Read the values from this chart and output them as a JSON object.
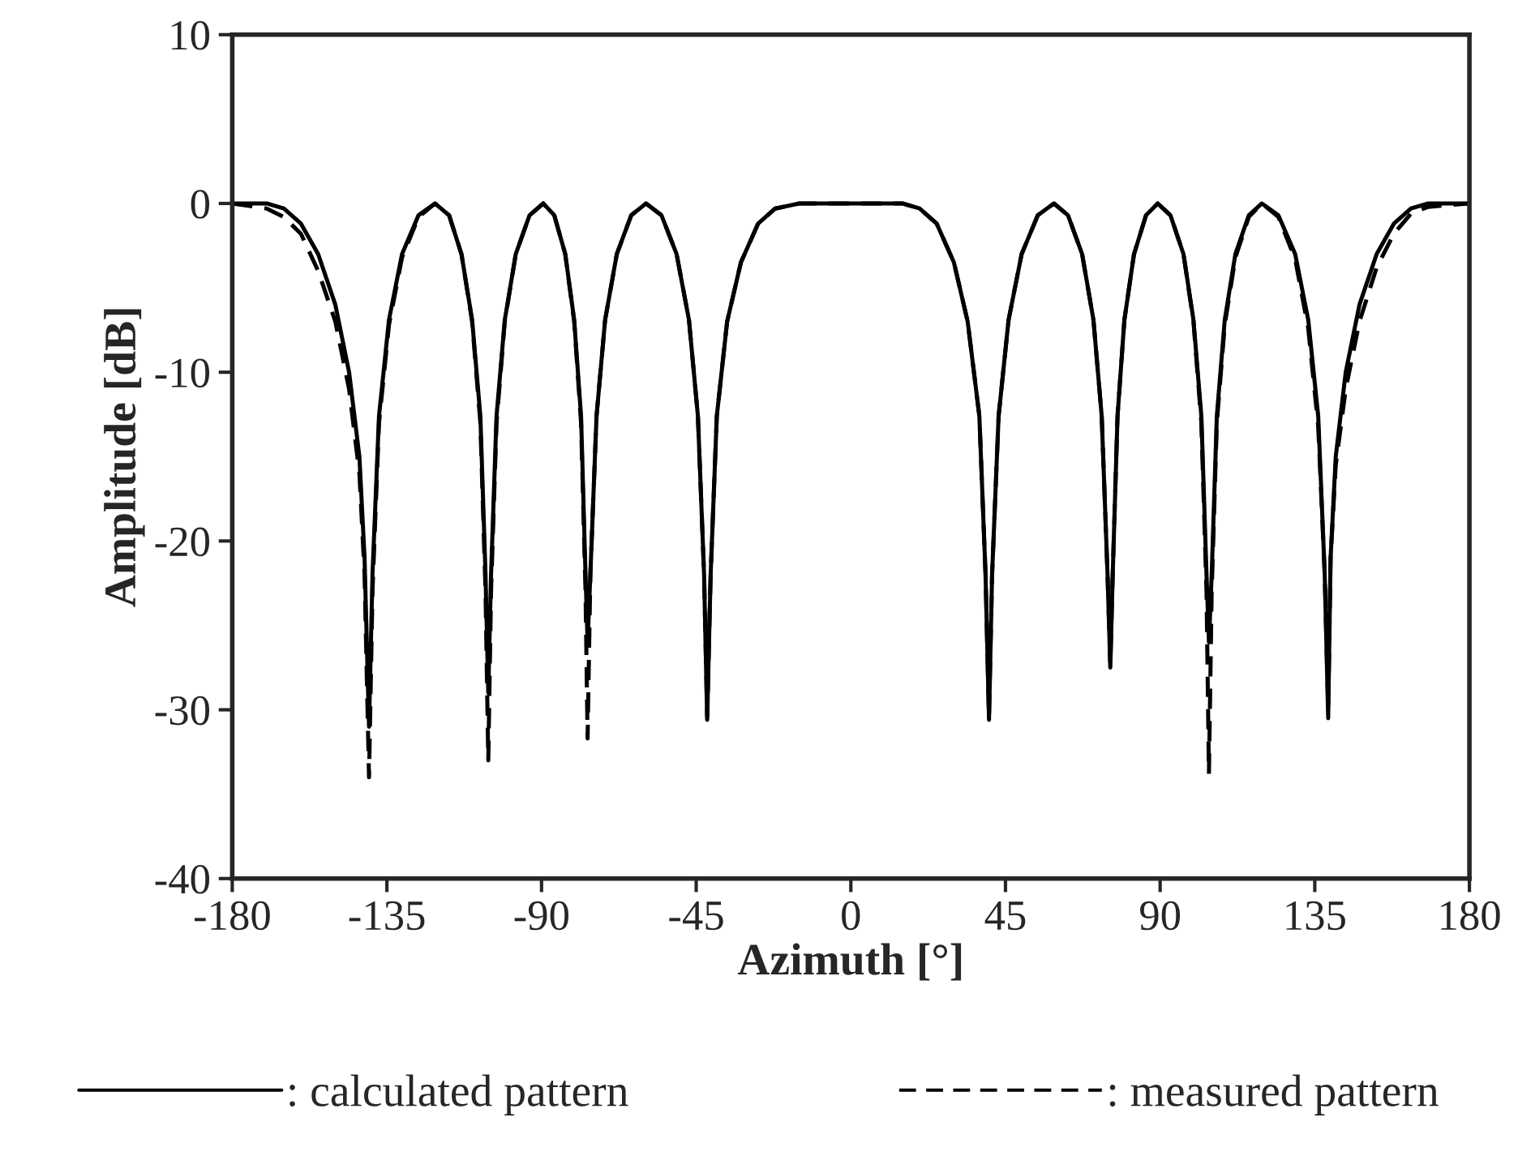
{
  "chart_data": {
    "type": "line",
    "xlabel": "Azimuth [°]",
    "ylabel": "Amplitude [dB]",
    "x": [
      -180,
      -170,
      -165,
      -160,
      -155,
      -150,
      -146,
      -143,
      -141.5,
      -140.2,
      -139.2,
      -137.3,
      -134.4,
      -130.6,
      -125.8,
      -121,
      -116.9,
      -113.3,
      -110.2,
      -107.8,
      -106.3,
      -105.5,
      -104.7,
      -103.1,
      -100.7,
      -97.5,
      -93.5,
      -89.5,
      -86.3,
      -83.1,
      -80.5,
      -78.5,
      -77.2,
      -76.6,
      -75.8,
      -74,
      -71.5,
      -68.1,
      -63.9,
      -59.6,
      -55.1,
      -50.7,
      -47.1,
      -44.5,
      -42.7,
      -41.8,
      -40.8,
      -39,
      -36,
      -32,
      -27,
      -22,
      -15,
      0,
      15,
      20,
      25,
      30,
      34,
      37.4,
      39.2,
      40.2,
      41.1,
      43,
      45.9,
      49.7,
      54.4,
      59.1,
      63.2,
      67.3,
      70.6,
      73,
      74.7,
      75.5,
      76.2,
      77.6,
      79.6,
      82.4,
      85.9,
      89.3,
      93,
      96.8,
      99.7,
      102,
      103.5,
      104.2,
      105,
      106.5,
      108.8,
      111.9,
      115.8,
      119.6,
      124.4,
      129.3,
      133.1,
      136,
      137.9,
      138.9,
      139.6,
      141.1,
      144,
      148,
      153,
      158,
      163,
      168,
      180
    ],
    "series": [
      {
        "name": ": calculated pattern",
        "color": "#000000",
        "line_style": "solid",
        "values": [
          0,
          0,
          -0.3,
          -1.2,
          -3,
          -6,
          -10,
          -15,
          -21,
          -31,
          -22,
          -12.6,
          -6.9,
          -3,
          -0.7,
          0,
          -0.7,
          -3,
          -6.9,
          -12.6,
          -22,
          -29,
          -22,
          -12.6,
          -6.9,
          -3,
          -0.7,
          0,
          -0.7,
          -3,
          -6.9,
          -12.6,
          -22,
          -26,
          -22,
          -12.6,
          -6.9,
          -3,
          -0.7,
          0,
          -0.7,
          -3,
          -6.9,
          -12.6,
          -22,
          -30.6,
          -22,
          -12.6,
          -7,
          -3.5,
          -1.2,
          -0.3,
          0,
          0,
          0,
          -0.3,
          -1.2,
          -3.5,
          -7,
          -12.6,
          -22,
          -30.6,
          -22,
          -12.6,
          -6.9,
          -3,
          -0.7,
          0,
          -0.7,
          -3,
          -6.9,
          -12.6,
          -22,
          -27.5,
          -22,
          -12.6,
          -6.9,
          -3,
          -0.7,
          0,
          -0.7,
          -3,
          -6.9,
          -12.6,
          -22,
          -26,
          -22,
          -12.6,
          -6.9,
          -3,
          -0.7,
          0,
          -0.7,
          -3,
          -6.9,
          -12.6,
          -22,
          -30.5,
          -21,
          -15,
          -10,
          -6,
          -3,
          -1.2,
          -0.3,
          0,
          0
        ]
      },
      {
        "name": ": measured pattern",
        "color": "#000000",
        "line_style": "dashed",
        "values": [
          0,
          -0.3,
          -0.8,
          -1.8,
          -4,
          -7,
          -11,
          -16,
          -22,
          -34,
          -23,
          -13,
          -7.2,
          -3.2,
          -0.8,
          0,
          -0.7,
          -3,
          -7,
          -13,
          -23,
          -33,
          -23,
          -13,
          -7,
          -3,
          -0.7,
          0,
          -0.7,
          -3,
          -7,
          -13,
          -23,
          -31.7,
          -22,
          -12.6,
          -6.9,
          -3,
          -0.7,
          0,
          -0.7,
          -3,
          -6.9,
          -12.6,
          -22,
          -30.4,
          -22,
          -12.6,
          -7,
          -3.5,
          -1.2,
          -0.3,
          0,
          0,
          0,
          -0.3,
          -1.2,
          -3.5,
          -7,
          -12.6,
          -22,
          -30.4,
          -22,
          -12.6,
          -6.9,
          -3,
          -0.7,
          0,
          -0.7,
          -3,
          -6.9,
          -12.6,
          -22,
          -27.3,
          -22,
          -12.6,
          -6.9,
          -3,
          -0.7,
          0,
          -0.7,
          -3,
          -7,
          -13,
          -23,
          -33.8,
          -23,
          -13,
          -7.2,
          -3.2,
          -0.8,
          0,
          -0.8,
          -3.3,
          -7.4,
          -13.2,
          -22,
          -30,
          -21,
          -15.5,
          -11,
          -7,
          -3.8,
          -1.8,
          -0.6,
          -0.2,
          0
        ]
      }
    ],
    "xlim": [
      -180,
      180
    ],
    "xticks": [
      -180,
      -135,
      -90,
      -45,
      0,
      45,
      90,
      135,
      180
    ],
    "ylim": [
      -40,
      10
    ],
    "yticks": [
      -40,
      -30,
      -20,
      -10,
      0,
      10
    ],
    "grid": false,
    "legend": "bottom"
  }
}
